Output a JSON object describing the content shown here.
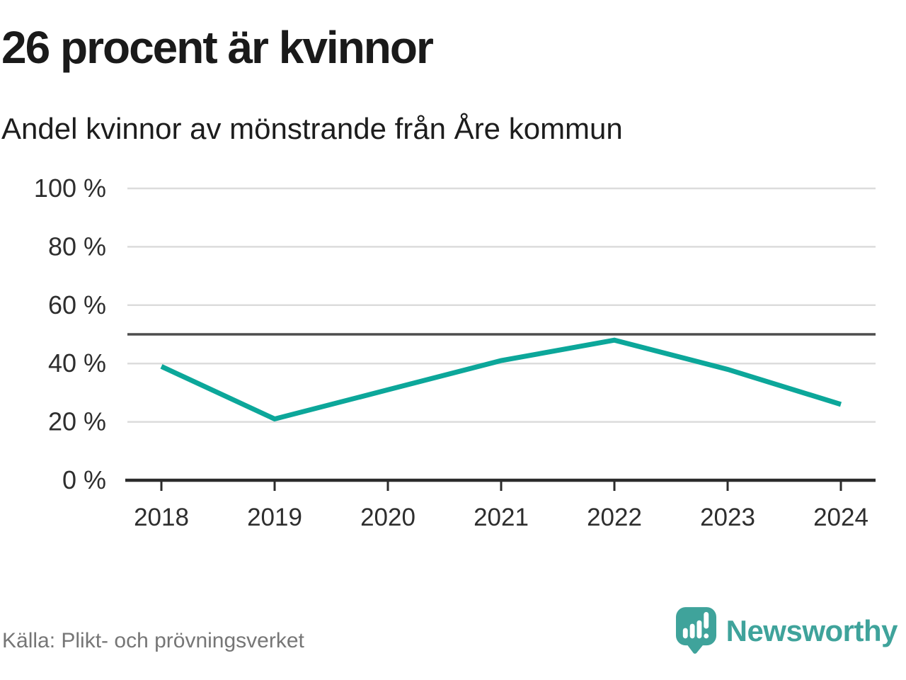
{
  "title": "26 procent är kvinnor",
  "subtitle": "Andel kvinnor av mönstrande från Åre kommun",
  "source": "Källa: Plikt- och prövningsverket",
  "brand": {
    "name": "Newsworthy",
    "icon": "newsworthy-speech-bubble-bar-chart-icon",
    "color": "#3fa39b"
  },
  "colors": {
    "line": "#0ca79a",
    "grid": "#dcdcdc",
    "reference_line": "#4d4d4d",
    "axis": "#2b2b2b",
    "tick_text": "#2e2e2e",
    "muted_text": "#767676"
  },
  "chart_data": {
    "type": "line",
    "x": [
      "2018",
      "2019",
      "2020",
      "2021",
      "2022",
      "2023",
      "2024"
    ],
    "series": [
      {
        "name": "Andel kvinnor av mönstrande",
        "values": [
          39,
          21,
          31,
          41,
          48,
          38,
          26
        ]
      }
    ],
    "title": "26 procent är kvinnor",
    "subtitle": "Andel kvinnor av mönstrande från Åre kommun",
    "xlabel": "",
    "ylabel": "",
    "ylim": [
      0,
      100
    ],
    "yticks": [
      0,
      20,
      40,
      60,
      80,
      100
    ],
    "ytick_suffix": " %",
    "reference_line": 50,
    "grid": true,
    "legend": false
  }
}
